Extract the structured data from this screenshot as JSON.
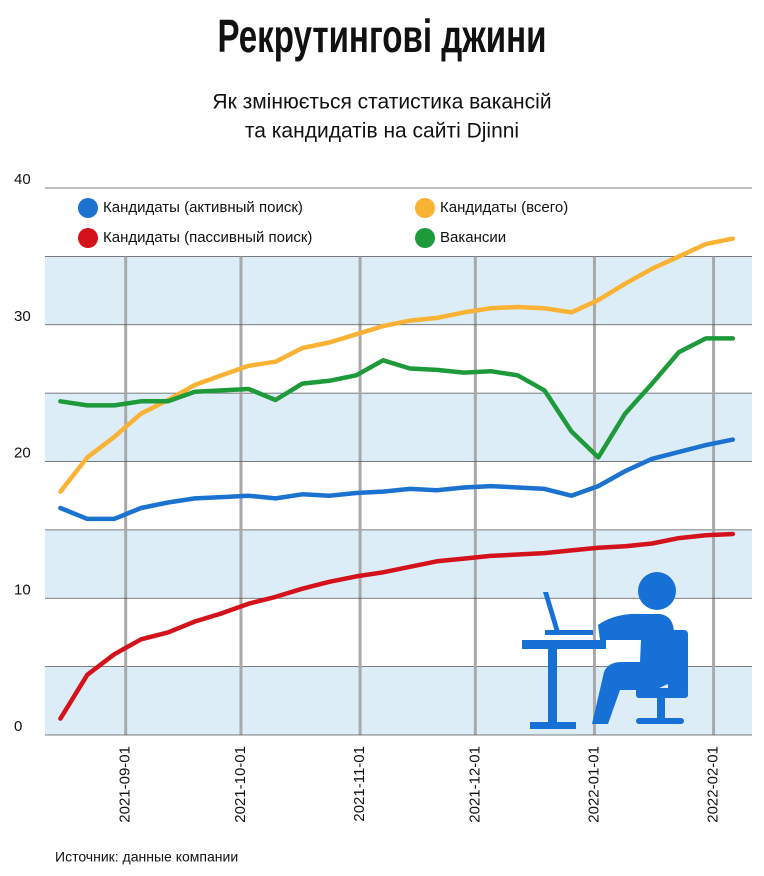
{
  "chart_data": {
    "type": "line",
    "title": "Рекрутингові джини",
    "subtitle": [
      "Як змінюється статистика вакансій",
      "та кандидатів на сайті Djinni"
    ],
    "source": "Источник: данные компании",
    "x": [
      "2021-08-15",
      "2021-08-22",
      "2021-08-29",
      "2021-09-05",
      "2021-09-12",
      "2021-09-19",
      "2021-09-26",
      "2021-10-03",
      "2021-10-10",
      "2021-10-17",
      "2021-10-24",
      "2021-10-31",
      "2021-11-07",
      "2021-11-14",
      "2021-11-21",
      "2021-11-28",
      "2021-12-05",
      "2021-12-12",
      "2021-12-19",
      "2021-12-26",
      "2022-01-02",
      "2022-01-09",
      "2022-01-16",
      "2022-01-23",
      "2022-01-30",
      "2022-02-06"
    ],
    "xlim": [
      "2021-08-11",
      "2022-02-11"
    ],
    "xticks": [
      "2021-09-01",
      "2021-10-01",
      "2021-11-01",
      "2021-12-01",
      "2022-01-01",
      "2022-02-01"
    ],
    "ylim": [
      0,
      40
    ],
    "yticks": [
      0,
      10,
      20,
      30,
      40
    ],
    "grid": true,
    "series": [
      {
        "name": "Кандидаты (активный поиск)",
        "color": "#1b72cf",
        "values": [
          16.6,
          15.8,
          15.8,
          16.6,
          17.0,
          17.3,
          17.4,
          17.5,
          17.3,
          17.6,
          17.5,
          17.7,
          17.8,
          18.0,
          17.9,
          18.1,
          18.2,
          18.1,
          18.0,
          17.5,
          18.2,
          19.3,
          20.2,
          20.7,
          21.2,
          21.6
        ]
      },
      {
        "name": "Кандидаты (всего)",
        "color": "#f9b233",
        "values": [
          17.8,
          20.3,
          21.8,
          23.5,
          24.5,
          25.6,
          26.3,
          27.0,
          27.3,
          28.3,
          28.7,
          29.3,
          29.9,
          30.3,
          30.5,
          30.9,
          31.2,
          31.3,
          31.2,
          30.9,
          31.8,
          33.0,
          34.1,
          35.0,
          35.9,
          36.3
        ]
      },
      {
        "name": "Кандидаты (пассивный поиск)",
        "color": "#d4121b",
        "values": [
          1.2,
          4.4,
          5.9,
          7.0,
          7.5,
          8.3,
          8.9,
          9.6,
          10.1,
          10.7,
          11.2,
          11.6,
          11.9,
          12.3,
          12.7,
          12.9,
          13.1,
          13.2,
          13.3,
          13.5,
          13.7,
          13.8,
          14.0,
          14.4,
          14.6,
          14.7
        ]
      },
      {
        "name": "Вакансии",
        "color": "#1e9a3b",
        "values": [
          24.4,
          24.1,
          24.1,
          24.4,
          24.4,
          25.1,
          25.2,
          25.3,
          24.5,
          25.7,
          25.9,
          26.3,
          27.4,
          26.8,
          26.7,
          26.5,
          26.6,
          26.3,
          25.2,
          22.2,
          20.3,
          23.5,
          25.7,
          28.0,
          29.0,
          29.0
        ]
      }
    ]
  }
}
